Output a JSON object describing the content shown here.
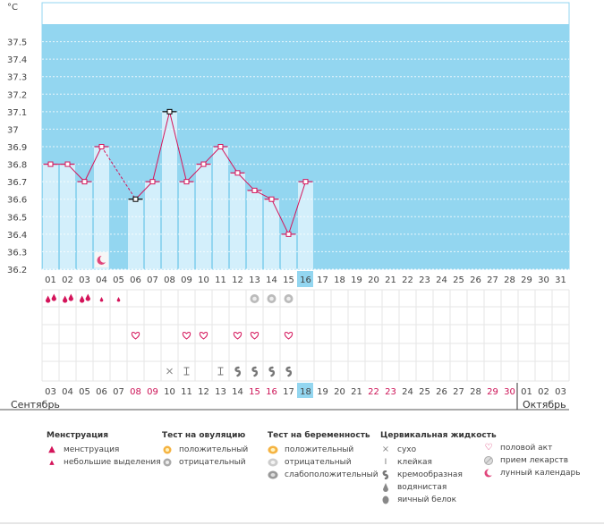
{
  "chart_data": {
    "type": "line",
    "y_unit": "°C",
    "ylim": [
      36.2,
      37.6
    ],
    "yticks": [
      "37.5",
      "37.4",
      "37.3",
      "37.2",
      "37.1",
      "37",
      "36.9",
      "36.8",
      "36.7",
      "36.6",
      "36.5",
      "36.4",
      "36.3",
      "36.2"
    ],
    "cycle_days": [
      "01",
      "02",
      "03",
      "04",
      "05",
      "06",
      "07",
      "08",
      "09",
      "10",
      "11",
      "12",
      "13",
      "14",
      "15",
      "16",
      "17",
      "18",
      "19",
      "20",
      "21",
      "22",
      "23",
      "24",
      "25",
      "26",
      "27",
      "28",
      "29",
      "30",
      "31"
    ],
    "current_day_index": 15,
    "series": [
      {
        "values": [
          36.8,
          36.8,
          36.7,
          36.9,
          null,
          36.6,
          36.7,
          37.1,
          36.7,
          36.8,
          36.9,
          36.75,
          36.65,
          36.6,
          36.4,
          36.7
        ]
      }
    ],
    "dashed_segment": [
      3,
      5
    ],
    "black_markers": [
      5,
      7
    ],
    "calendar_dates": [
      "03",
      "04",
      "05",
      "06",
      "07",
      "08",
      "09",
      "10",
      "11",
      "12",
      "13",
      "14",
      "15",
      "16",
      "17",
      "18",
      "19",
      "20",
      "21",
      "22",
      "23",
      "24",
      "25",
      "26",
      "27",
      "28",
      "29",
      "30",
      "01",
      "02",
      "03"
    ],
    "weekend_date_indexes": [
      5,
      6,
      12,
      13,
      19,
      20,
      26,
      27
    ],
    "months": [
      "Сентябрь",
      "Октябрь"
    ],
    "month_break_index": 28,
    "markers": {
      "moon_row": [
        3
      ],
      "menstruation_row": {
        "heavy": [
          0,
          1,
          2
        ],
        "light": [
          3,
          4
        ]
      },
      "pregnancy_test_row": [
        12,
        13,
        14
      ],
      "sex_row": [
        5,
        8,
        9,
        11,
        12,
        14
      ],
      "fluid_row": {
        "dry": [
          7
        ],
        "sticky": [
          8,
          10
        ],
        "creamy": [
          11,
          12,
          13,
          14
        ]
      }
    }
  },
  "legend": {
    "menstruation": {
      "title": "Менструация",
      "items": [
        "менструация",
        "небольшие выделения"
      ]
    },
    "ovulation": {
      "title": "Тест на овуляцию",
      "items": [
        "положительный",
        "отрицательный"
      ]
    },
    "pregnancy": {
      "title": "Тест на беременность",
      "items": [
        "положительный",
        "отрицательный",
        "слабоположительный"
      ]
    },
    "fluid": {
      "title": "Цервикальная жидкость",
      "items": [
        "сухо",
        "клейкая",
        "кремообразная",
        "водянистая",
        "яичный белок"
      ]
    },
    "other": {
      "items": [
        "половой акт",
        "прием лекарств",
        "лунный календарь"
      ]
    }
  },
  "colors": {
    "sky": "#93d6f0",
    "bar": "#d3effb",
    "line": "#d4145a",
    "black": "#000000",
    "grid": "#e6e6e6"
  }
}
